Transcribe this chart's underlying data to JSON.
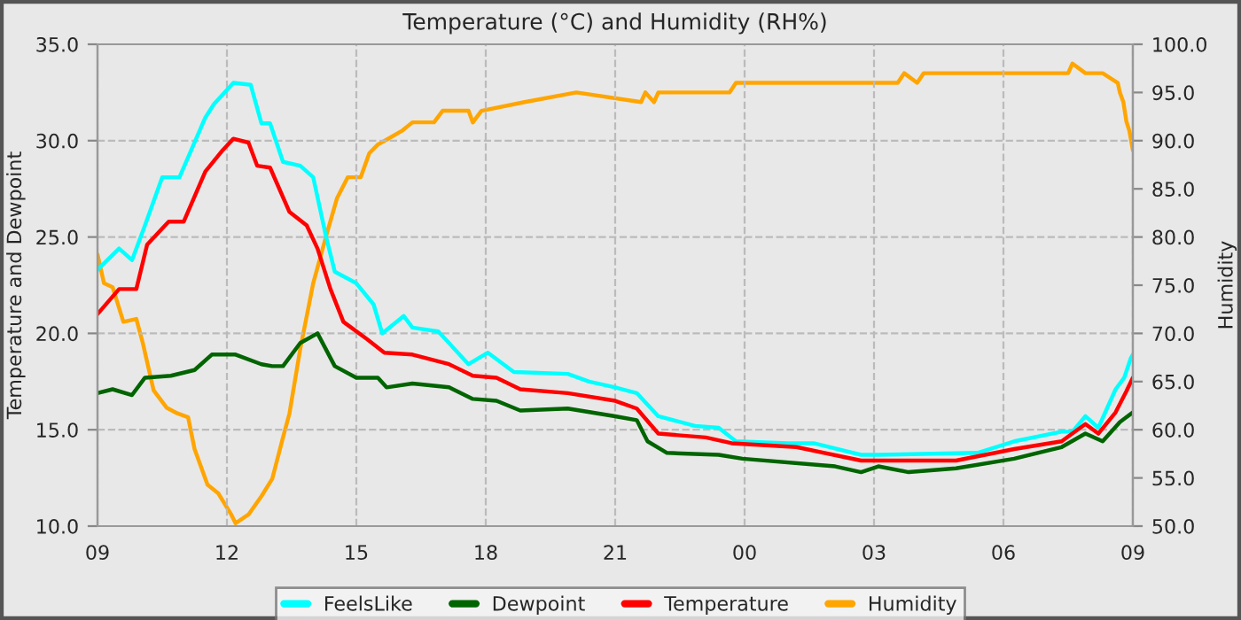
{
  "chart_data": {
    "type": "line",
    "title": "Temperature (°C) and Humidity (RH%)",
    "ylabel": "Temperature and Dewpoint",
    "y2label": "Humidity",
    "xlim": [
      9,
      33
    ],
    "xticks": [
      {
        "value": 9,
        "label": "09"
      },
      {
        "value": 12,
        "label": "12"
      },
      {
        "value": 15,
        "label": "15"
      },
      {
        "value": 18,
        "label": "18"
      },
      {
        "value": 21,
        "label": "21"
      },
      {
        "value": 24,
        "label": "00"
      },
      {
        "value": 27,
        "label": "03"
      },
      {
        "value": 30,
        "label": "06"
      },
      {
        "value": 33,
        "label": "09"
      }
    ],
    "ylim": [
      10,
      35
    ],
    "yticks": [
      {
        "value": 10,
        "label": "10.0"
      },
      {
        "value": 15,
        "label": "15.0"
      },
      {
        "value": 20,
        "label": "20.0"
      },
      {
        "value": 25,
        "label": "25.0"
      },
      {
        "value": 30,
        "label": "30.0"
      },
      {
        "value": 35,
        "label": "35.0"
      }
    ],
    "y2lim": [
      50,
      100
    ],
    "y2ticks": [
      {
        "value": 50,
        "label": "50.0"
      },
      {
        "value": 55,
        "label": "55.0"
      },
      {
        "value": 60,
        "label": "60.0"
      },
      {
        "value": 65,
        "label": "65.0"
      },
      {
        "value": 70,
        "label": "70.0"
      },
      {
        "value": 75,
        "label": "75.0"
      },
      {
        "value": 80,
        "label": "80.0"
      },
      {
        "value": 85,
        "label": "85.0"
      },
      {
        "value": 90,
        "label": "90.0"
      },
      {
        "value": 95,
        "label": "95.0"
      },
      {
        "value": 100,
        "label": "100.0"
      }
    ],
    "grid": true,
    "legend": "bottom",
    "line_style": "solid",
    "series": [
      {
        "name": "FeelsLike",
        "color": "#00ffff",
        "x": [
          9,
          9.5,
          9.8,
          10.1,
          10.5,
          10.9,
          11.5,
          11.7,
          12.15,
          12.55,
          12.8,
          13.0,
          13.3,
          13.7,
          14.0,
          14.3,
          14.5,
          15.0,
          15.4,
          15.6,
          16.1,
          16.3,
          16.9,
          17.6,
          18.05,
          18.65,
          19.9,
          20.4,
          21.0,
          21.5,
          22.0,
          22.85,
          23.4,
          23.8,
          25.0,
          25.6,
          26.7,
          27.1,
          29.4,
          30.25,
          31.35,
          31.6,
          31.9,
          32.2,
          32.6,
          32.8,
          32.95,
          33
        ],
        "values": [
          23.3,
          24.4,
          23.8,
          25.6,
          28.1,
          28.1,
          31.2,
          31.9,
          33.0,
          32.9,
          30.9,
          30.9,
          28.9,
          28.7,
          28.1,
          25.0,
          23.2,
          22.6,
          21.5,
          20.0,
          20.9,
          20.3,
          20.1,
          18.4,
          19.0,
          18.0,
          17.9,
          17.5,
          17.2,
          16.9,
          15.7,
          15.2,
          15.1,
          14.4,
          14.3,
          14.3,
          13.7,
          13.7,
          13.8,
          14.4,
          14.9,
          14.9,
          15.7,
          15.1,
          17.1,
          17.7,
          18.7,
          18.9
        ]
      },
      {
        "name": "Dewpoint",
        "color": "#006400",
        "x": [
          9,
          9.35,
          9.8,
          10.1,
          10.7,
          11.25,
          11.65,
          12.2,
          12.8,
          13.05,
          13.3,
          13.7,
          14.1,
          14.5,
          15.0,
          15.5,
          15.7,
          16.3,
          17.15,
          17.7,
          18.25,
          18.8,
          19.9,
          21.0,
          21.5,
          21.75,
          22.2,
          23.4,
          23.95,
          26.1,
          26.7,
          27.1,
          27.8,
          28.9,
          30.25,
          31.35,
          31.9,
          32.3,
          32.7,
          33
        ],
        "values": [
          16.9,
          17.1,
          16.8,
          17.7,
          17.8,
          18.1,
          18.9,
          18.9,
          18.4,
          18.3,
          18.3,
          19.5,
          20.0,
          18.3,
          17.7,
          17.7,
          17.2,
          17.4,
          17.2,
          16.6,
          16.5,
          16.0,
          16.1,
          15.7,
          15.5,
          14.4,
          13.8,
          13.7,
          13.5,
          13.1,
          12.8,
          13.1,
          12.8,
          13.0,
          13.5,
          14.1,
          14.8,
          14.4,
          15.4,
          15.9
        ]
      },
      {
        "name": "Temperature",
        "color": "#ff0000",
        "x": [
          9,
          9.5,
          9.9,
          10.15,
          10.65,
          11.0,
          11.5,
          11.9,
          12.15,
          12.5,
          12.7,
          13.0,
          13.45,
          13.85,
          14.1,
          14.4,
          14.7,
          15.25,
          15.65,
          16.3,
          17.15,
          17.7,
          18.25,
          18.8,
          19.9,
          21.0,
          21.5,
          22.0,
          23.1,
          23.7,
          25.2,
          26.7,
          28.9,
          30.25,
          31.35,
          31.9,
          32.2,
          32.6,
          32.85,
          33
        ],
        "values": [
          21.0,
          22.3,
          22.3,
          24.6,
          25.8,
          25.8,
          28.4,
          29.5,
          30.1,
          29.9,
          28.7,
          28.6,
          26.3,
          25.6,
          24.4,
          22.3,
          20.6,
          19.7,
          19.0,
          18.9,
          18.4,
          17.8,
          17.7,
          17.1,
          16.9,
          16.5,
          16.1,
          14.8,
          14.6,
          14.3,
          14.1,
          13.4,
          13.4,
          14.0,
          14.4,
          15.3,
          14.8,
          15.9,
          17.0,
          17.7
        ]
      },
      {
        "name": "Humidity",
        "color": "#ffa500",
        "axis": "y2",
        "x": [
          9,
          9.15,
          9.35,
          9.6,
          9.9,
          10.05,
          10.3,
          10.6,
          10.85,
          11.1,
          11.25,
          11.55,
          11.8,
          12.1,
          12.2,
          12.5,
          12.8,
          13.05,
          13.3,
          13.45,
          13.7,
          14.0,
          14.3,
          14.55,
          14.8,
          15.1,
          15.3,
          15.5,
          15.7,
          16.05,
          16.3,
          16.8,
          17.0,
          17.6,
          17.7,
          17.9,
          18.9,
          20.1,
          21.6,
          21.7,
          21.9,
          22.0,
          22.2,
          23.65,
          23.8,
          26.9,
          27.55,
          27.7,
          28.0,
          28.15,
          31.5,
          31.6,
          31.9,
          32.3,
          32.65,
          32.7,
          32.78,
          32.85,
          32.92,
          33
        ],
        "values": [
          78.2,
          75.2,
          74.8,
          71.2,
          71.5,
          69.0,
          64.1,
          62.3,
          61.7,
          61.3,
          58.0,
          54.3,
          53.4,
          51.2,
          50.3,
          51.2,
          53.1,
          54.9,
          59.2,
          61.7,
          68.4,
          75.2,
          80.1,
          84.0,
          86.2,
          86.2,
          88.7,
          89.6,
          90.1,
          91.0,
          91.9,
          91.9,
          93.1,
          93.1,
          91.9,
          93.1,
          94.0,
          95.0,
          94.0,
          95.0,
          94.0,
          95.0,
          95.0,
          95.0,
          96.0,
          96.0,
          96.0,
          97.0,
          96.0,
          97.0,
          97.0,
          98.0,
          97.0,
          97.0,
          96.0,
          95.0,
          94.0,
          92.0,
          91.0,
          89.0
        ]
      }
    ]
  }
}
